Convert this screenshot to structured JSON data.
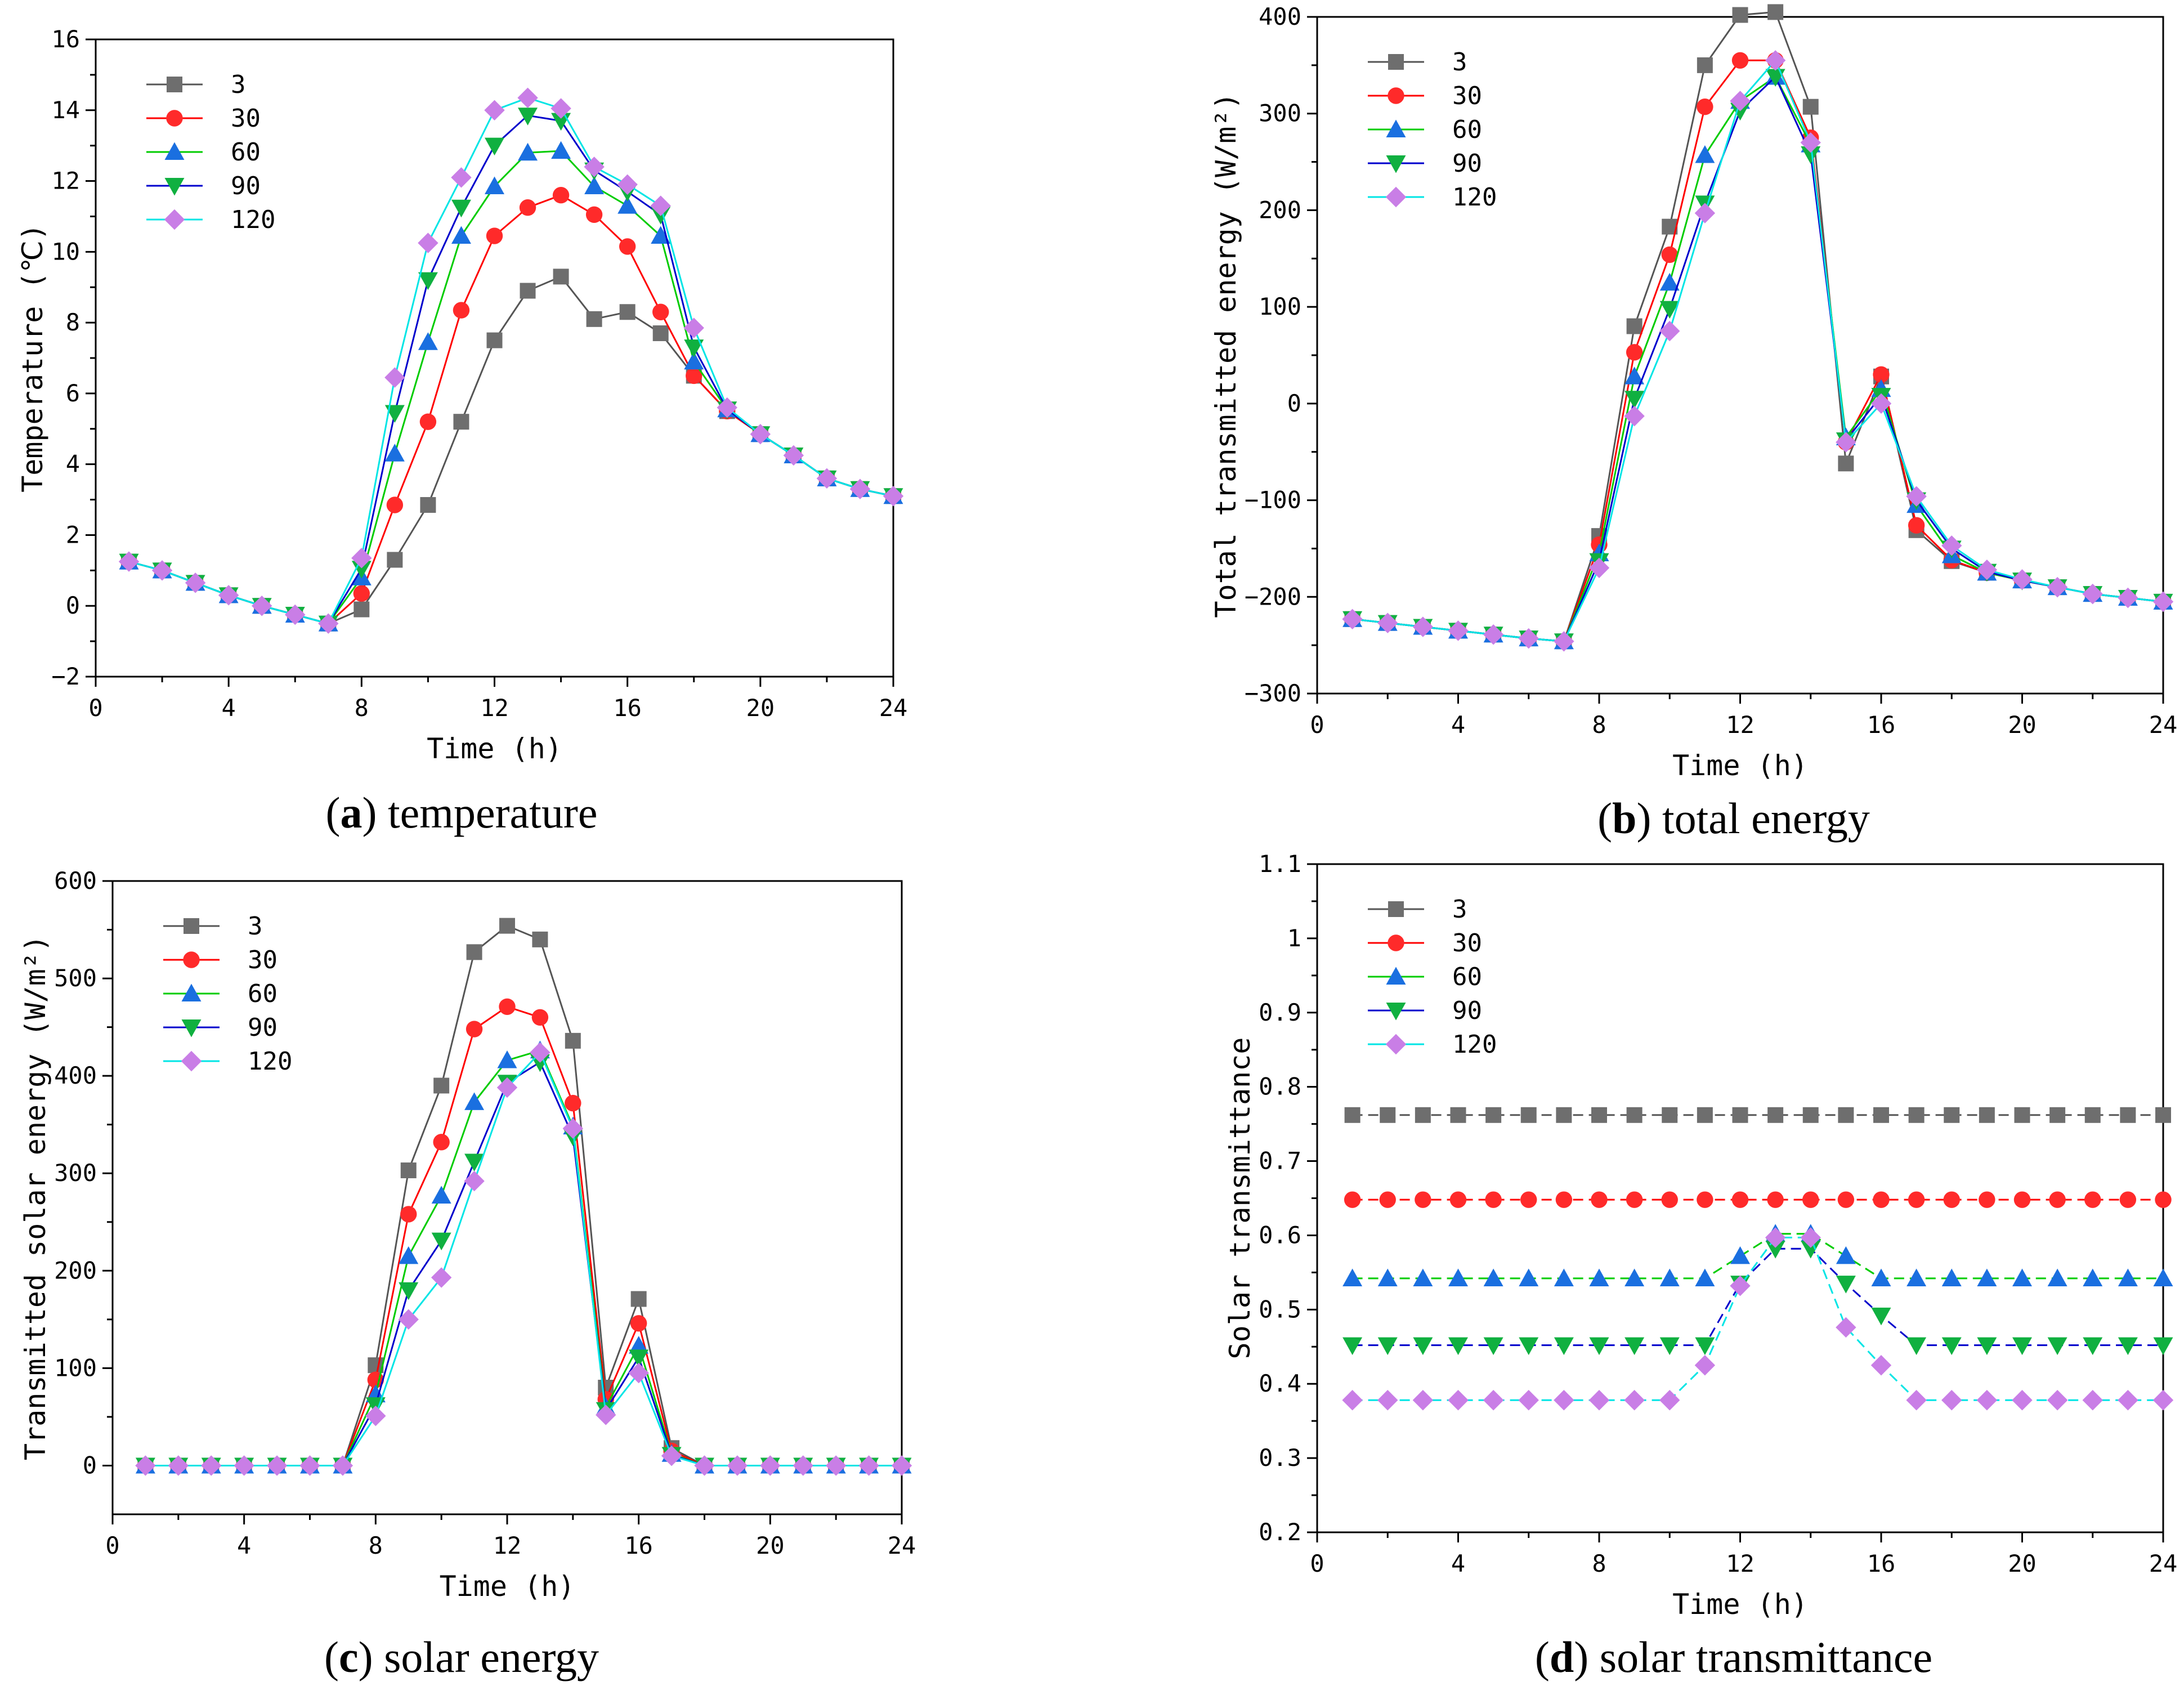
{
  "figure": {
    "series_colors": {
      "3": "#555555",
      "30": "#ff0000",
      "60": "#00cc00",
      "90": "#0000cc",
      "120": "#00e5e5"
    },
    "marker_colors": {
      "3": "#6e6e6e",
      "30": "#ff2a2a",
      "60": "#1a6fe0",
      "90": "#10b040",
      "120": "#c97ee6"
    },
    "marker_shapes": {
      "3": "square",
      "30": "circle",
      "60": "triangle-up",
      "90": "triangle-down",
      "120": "diamond"
    }
  },
  "chart_data": [
    {
      "id": "a",
      "type": "line",
      "caption_letter": "a",
      "caption_text": "temperature",
      "xlabel": "Time (h)",
      "ylabel": "Temperature (℃)",
      "xlim": [
        0,
        24
      ],
      "ylim": [
        -2,
        16
      ],
      "xticks": [
        0,
        4,
        8,
        12,
        16,
        20,
        24
      ],
      "yticks": [
        -2,
        0,
        2,
        4,
        6,
        8,
        10,
        12,
        14,
        16
      ],
      "legend_position": "top-left",
      "x": [
        1,
        2,
        3,
        4,
        5,
        6,
        7,
        8,
        9,
        10,
        11,
        12,
        13,
        14,
        15,
        16,
        17,
        18,
        19,
        20,
        21,
        22,
        23,
        24
      ],
      "series": [
        {
          "name": "3",
          "values": [
            1.25,
            1.0,
            0.65,
            0.3,
            0.0,
            -0.25,
            -0.5,
            -0.1,
            1.3,
            2.85,
            5.2,
            7.5,
            8.9,
            9.3,
            8.1,
            8.3,
            7.7,
            6.5,
            5.5,
            4.85,
            4.25,
            3.6,
            3.3,
            3.1
          ]
        },
        {
          "name": "30",
          "values": [
            1.25,
            1.0,
            0.65,
            0.3,
            0.0,
            -0.25,
            -0.5,
            0.35,
            2.85,
            5.2,
            8.35,
            10.45,
            11.25,
            11.6,
            11.05,
            10.15,
            8.3,
            6.5,
            5.5,
            4.85,
            4.25,
            3.6,
            3.3,
            3.1
          ]
        },
        {
          "name": "60",
          "values": [
            1.25,
            1.0,
            0.65,
            0.3,
            0.0,
            -0.25,
            -0.5,
            0.8,
            4.3,
            7.45,
            10.45,
            11.85,
            12.8,
            12.85,
            11.85,
            11.3,
            10.45,
            6.9,
            5.55,
            4.85,
            4.25,
            3.6,
            3.3,
            3.1
          ]
        },
        {
          "name": "90",
          "values": [
            1.25,
            1.0,
            0.65,
            0.3,
            0.0,
            -0.25,
            -0.5,
            1.05,
            5.45,
            9.2,
            11.25,
            13.0,
            13.85,
            13.7,
            12.3,
            11.7,
            11.05,
            7.3,
            5.55,
            4.85,
            4.25,
            3.6,
            3.3,
            3.1
          ]
        },
        {
          "name": "120",
          "values": [
            1.25,
            1.0,
            0.65,
            0.3,
            0.0,
            -0.25,
            -0.5,
            1.35,
            6.45,
            10.25,
            12.1,
            14.0,
            14.35,
            14.05,
            12.4,
            11.9,
            11.3,
            7.85,
            5.6,
            4.85,
            4.25,
            3.6,
            3.3,
            3.1
          ]
        }
      ]
    },
    {
      "id": "b",
      "type": "line",
      "caption_letter": "b",
      "caption_text": "total energy",
      "xlabel": "Time (h)",
      "ylabel": "Total transmitted energy (W/m²)",
      "xlim": [
        0,
        24
      ],
      "ylim": [
        -300,
        400
      ],
      "xticks": [
        0,
        4,
        8,
        12,
        16,
        20,
        24
      ],
      "yticks": [
        -300,
        -200,
        -100,
        0,
        100,
        200,
        300,
        400
      ],
      "legend_position": "top-left",
      "x": [
        1,
        2,
        3,
        4,
        5,
        6,
        7,
        8,
        9,
        10,
        11,
        12,
        13,
        14,
        15,
        16,
        17,
        18,
        19,
        20,
        21,
        22,
        23,
        24
      ],
      "series": [
        {
          "name": "3",
          "values": [
            -223,
            -227,
            -231,
            -235,
            -239,
            -243,
            -246,
            -137,
            80,
            183,
            350,
            402,
            405,
            307,
            -62,
            28,
            -131,
            -163,
            -175,
            -183,
            -190,
            -197,
            -201,
            -205
          ]
        },
        {
          "name": "30",
          "values": [
            -223,
            -227,
            -231,
            -235,
            -239,
            -243,
            -246,
            -146,
            53,
            154,
            307,
            355,
            355,
            275,
            -40,
            30,
            -126,
            -162,
            -175,
            -183,
            -190,
            -197,
            -201,
            -205
          ]
        },
        {
          "name": "60",
          "values": [
            -223,
            -227,
            -231,
            -235,
            -239,
            -243,
            -246,
            -155,
            28,
            125,
            257,
            313,
            338,
            268,
            -35,
            15,
            -105,
            -157,
            -175,
            -183,
            -190,
            -197,
            -201,
            -205
          ]
        },
        {
          "name": "90",
          "values": [
            -223,
            -227,
            -231,
            -235,
            -239,
            -243,
            -246,
            -163,
            5,
            98,
            207,
            303,
            338,
            258,
            -38,
            8,
            -100,
            -150,
            -174,
            -183,
            -190,
            -197,
            -201,
            -205
          ]
        },
        {
          "name": "120",
          "values": [
            -223,
            -227,
            -231,
            -235,
            -239,
            -243,
            -246,
            -170,
            -13,
            75,
            197,
            313,
            355,
            270,
            -40,
            0,
            -96,
            -147,
            -172,
            -182,
            -190,
            -197,
            -201,
            -205
          ]
        }
      ]
    },
    {
      "id": "c",
      "type": "line",
      "caption_letter": "c",
      "caption_text": "solar energy",
      "xlabel": "Time (h)",
      "ylabel": "Transmitted solar energy (W/m²)",
      "xlim": [
        0,
        24
      ],
      "ylim": [
        -50,
        600
      ],
      "xticks": [
        0,
        4,
        8,
        12,
        16,
        20,
        24
      ],
      "yticks": [
        0,
        100,
        200,
        300,
        400,
        500,
        600
      ],
      "legend_position": "top-left",
      "x": [
        1,
        2,
        3,
        4,
        5,
        6,
        7,
        8,
        9,
        10,
        11,
        12,
        13,
        14,
        15,
        16,
        17,
        18,
        19,
        20,
        21,
        22,
        23,
        24
      ],
      "series": [
        {
          "name": "3",
          "values": [
            0,
            0,
            0,
            0,
            0,
            0,
            0,
            103,
            303,
            390,
            527,
            554,
            540,
            436,
            80,
            171,
            18,
            0,
            0,
            0,
            0,
            0,
            0,
            0
          ]
        },
        {
          "name": "30",
          "values": [
            0,
            0,
            0,
            0,
            0,
            0,
            0,
            88,
            258,
            332,
            448,
            471,
            460,
            372,
            68,
            146,
            15,
            0,
            0,
            0,
            0,
            0,
            0,
            0
          ]
        },
        {
          "name": "60",
          "values": [
            0,
            0,
            0,
            0,
            0,
            0,
            0,
            73,
            215,
            277,
            373,
            416,
            426,
            348,
            60,
            123,
            12,
            0,
            0,
            0,
            0,
            0,
            0,
            0
          ]
        },
        {
          "name": "90",
          "values": [
            0,
            0,
            0,
            0,
            0,
            0,
            0,
            62,
            180,
            231,
            312,
            393,
            414,
            338,
            57,
            111,
            11,
            0,
            0,
            0,
            0,
            0,
            0,
            0
          ]
        },
        {
          "name": "120",
          "values": [
            0,
            0,
            0,
            0,
            0,
            0,
            0,
            51,
            150,
            193,
            292,
            388,
            424,
            346,
            52,
            95,
            10,
            0,
            0,
            0,
            0,
            0,
            0,
            0
          ]
        }
      ]
    },
    {
      "id": "d",
      "type": "line",
      "caption_letter": "d",
      "caption_text": "solar transmittance",
      "xlabel": "Time (h)",
      "ylabel": "Solar transmittance",
      "xlim": [
        0,
        24
      ],
      "ylim": [
        0.2,
        1.1
      ],
      "xticks": [
        0,
        4,
        8,
        12,
        16,
        20,
        24
      ],
      "yticks": [
        0.2,
        0.3,
        0.4,
        0.5,
        0.6,
        0.7,
        0.8,
        0.9,
        1.0,
        1.1
      ],
      "legend_position": "top-left",
      "x": [
        1,
        2,
        3,
        4,
        5,
        6,
        7,
        8,
        9,
        10,
        11,
        12,
        13,
        14,
        15,
        16,
        17,
        18,
        19,
        20,
        21,
        22,
        23,
        24
      ],
      "series": [
        {
          "name": "3",
          "values": [
            0.762,
            0.762,
            0.762,
            0.762,
            0.762,
            0.762,
            0.762,
            0.762,
            0.762,
            0.762,
            0.762,
            0.762,
            0.762,
            0.762,
            0.762,
            0.762,
            0.762,
            0.762,
            0.762,
            0.762,
            0.762,
            0.762,
            0.762,
            0.762
          ]
        },
        {
          "name": "30",
          "values": [
            0.648,
            0.648,
            0.648,
            0.648,
            0.648,
            0.648,
            0.648,
            0.648,
            0.648,
            0.648,
            0.648,
            0.648,
            0.648,
            0.648,
            0.648,
            0.648,
            0.648,
            0.648,
            0.648,
            0.648,
            0.648,
            0.648,
            0.648,
            0.648
          ]
        },
        {
          "name": "60",
          "values": [
            0.542,
            0.542,
            0.542,
            0.542,
            0.542,
            0.542,
            0.542,
            0.542,
            0.542,
            0.542,
            0.542,
            0.572,
            0.602,
            0.602,
            0.572,
            0.542,
            0.542,
            0.542,
            0.542,
            0.542,
            0.542,
            0.542,
            0.542,
            0.542
          ]
        },
        {
          "name": "90",
          "values": [
            0.452,
            0.452,
            0.452,
            0.452,
            0.452,
            0.452,
            0.452,
            0.452,
            0.452,
            0.452,
            0.452,
            0.535,
            0.582,
            0.582,
            0.535,
            0.492,
            0.452,
            0.452,
            0.452,
            0.452,
            0.452,
            0.452,
            0.452,
            0.452
          ]
        },
        {
          "name": "120",
          "values": [
            0.378,
            0.378,
            0.378,
            0.378,
            0.378,
            0.378,
            0.378,
            0.378,
            0.378,
            0.378,
            0.425,
            0.532,
            0.597,
            0.597,
            0.476,
            0.425,
            0.378,
            0.378,
            0.378,
            0.378,
            0.378,
            0.378,
            0.378,
            0.378
          ]
        }
      ]
    }
  ]
}
